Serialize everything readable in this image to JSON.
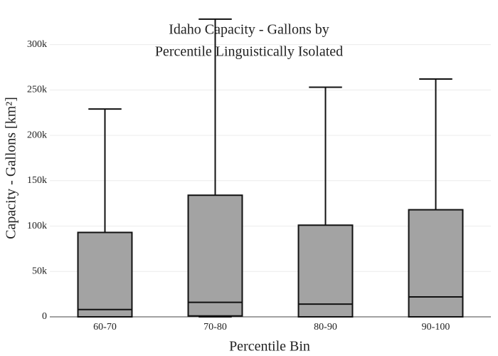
{
  "chart_data": {
    "type": "box",
    "title": [
      "Idaho Capacity - Gallons by",
      "Percentile Linguistically Isolated"
    ],
    "x_label": "Percentile Bin",
    "y_label": "Capacity - Gallons  [km²]",
    "categories": [
      "60-70",
      "70-80",
      "80-90",
      "90-100"
    ],
    "whisker_low": [
      0,
      0,
      0,
      0
    ],
    "q1": [
      0,
      1000,
      0,
      0
    ],
    "median": [
      8000,
      16000,
      14000,
      22000
    ],
    "q3": [
      93000,
      134000,
      101000,
      118000
    ],
    "whisker_high": [
      229000,
      328000,
      253000,
      262000
    ],
    "color": "#a3a3a3",
    "ylim": [
      0,
      335000
    ],
    "yticks": [
      0,
      {
        "value": 50000,
        "label": "50k"
      },
      {
        "value": 100000,
        "label": "100k"
      },
      {
        "value": 150000,
        "label": "150k"
      },
      {
        "value": 200000,
        "label": "200k"
      },
      {
        "value": 250000,
        "label": "250k"
      },
      {
        "value": 300000,
        "label": "300k"
      }
    ],
    "grid": true
  }
}
